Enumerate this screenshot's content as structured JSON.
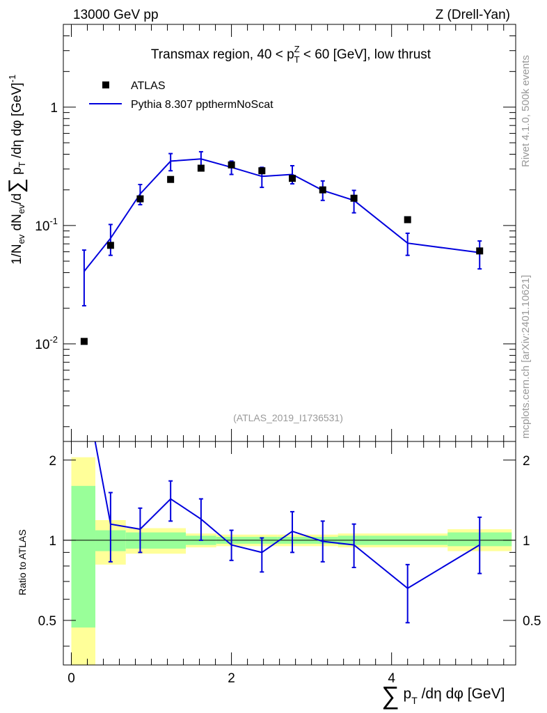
{
  "header": {
    "energy": "13000 GeV pp",
    "process": "Z (Drell-Yan)",
    "title": "Transmax region, 40 < p_T^Z < 60 [GeV], low thrust",
    "analysis": "(ATLAS_2019_I1736531)",
    "rivet": "Rivet 4.1.0,  500k events",
    "source": "mcplots.cern.ch [arXiv:2401.10621]"
  },
  "colors": {
    "mc": "#0000dd",
    "data": "#000000",
    "band_inner": "#99ff99",
    "band_outer": "#ffff99"
  },
  "chart_data": [
    {
      "type": "scatter",
      "title": "Transmax region, 40 < p_T^Z < 60 [GeV], low thrust",
      "xlabel": "Σ p_T /dη dφ [GeV]",
      "ylabel": "1/N_ev dN_ev/dΣ p_T /dη dφ [GeV]^-1",
      "yscale": "log",
      "xlim": [
        -0.1,
        5.55
      ],
      "ylim": [
        0.0015,
        5
      ],
      "ytick_labels": [
        "10^-2",
        "10^-1",
        "1"
      ],
      "legend": [
        "ATLAS",
        "Pythia 8.307 ppthermNoScat"
      ],
      "series": [
        {
          "name": "ATLAS",
          "x": [
            0.16,
            0.49,
            0.86,
            1.24,
            1.62,
            2.0,
            2.38,
            2.76,
            3.14,
            3.53,
            4.2,
            5.1
          ],
          "y": [
            0.0105,
            0.068,
            0.168,
            0.245,
            0.305,
            0.325,
            0.29,
            0.25,
            0.2,
            0.17,
            0.112,
            0.061
          ]
        },
        {
          "name": "Pythia 8.307 ppthermNoScat",
          "x": [
            0.16,
            0.49,
            0.86,
            1.24,
            1.62,
            2.0,
            2.38,
            2.76,
            3.14,
            3.53,
            4.2,
            5.1
          ],
          "y": [
            0.041,
            0.078,
            0.185,
            0.35,
            0.365,
            0.31,
            0.26,
            0.27,
            0.198,
            0.163,
            0.071,
            0.059
          ],
          "err_low": [
            0.02,
            0.022,
            0.035,
            0.06,
            0.05,
            0.04,
            0.05,
            0.045,
            0.035,
            0.035,
            0.015,
            0.016
          ],
          "err_high": [
            0.021,
            0.024,
            0.037,
            0.055,
            0.055,
            0.04,
            0.05,
            0.05,
            0.04,
            0.035,
            0.015,
            0.015
          ]
        }
      ]
    },
    {
      "type": "line",
      "ylabel": "Ratio to ATLAS",
      "xlim": [
        -0.1,
        5.55
      ],
      "ylim": [
        0.34,
        2.35
      ],
      "yscale": "log",
      "yticks": [
        0.5,
        1,
        2
      ],
      "ytick_labels": [
        "0.5",
        "1",
        "2"
      ],
      "xticks": [
        0,
        2,
        4
      ],
      "xtick_labels": [
        "0",
        "2",
        "4"
      ],
      "bands": [
        {
          "x": [
            0.0,
            0.3
          ],
          "inner": [
            0.47,
            1.6
          ],
          "outer": [
            0.34,
            2.05
          ]
        },
        {
          "x": [
            0.3,
            0.68
          ],
          "inner": [
            0.91,
            1.09
          ],
          "outer": [
            0.81,
            1.19
          ]
        },
        {
          "x": [
            0.68,
            1.43
          ],
          "inner": [
            0.93,
            1.07
          ],
          "outer": [
            0.89,
            1.11
          ]
        },
        {
          "x": [
            1.43,
            1.81
          ],
          "inner": [
            0.96,
            1.04
          ],
          "outer": [
            0.94,
            1.06
          ]
        },
        {
          "x": [
            1.81,
            2.57
          ],
          "inner": [
            0.97,
            1.03
          ],
          "outer": [
            0.95,
            1.05
          ]
        },
        {
          "x": [
            2.57,
            3.33
          ],
          "inner": [
            0.97,
            1.03
          ],
          "outer": [
            0.95,
            1.05
          ]
        },
        {
          "x": [
            3.33,
            3.72
          ],
          "inner": [
            0.96,
            1.04
          ],
          "outer": [
            0.94,
            1.06
          ]
        },
        {
          "x": [
            3.72,
            4.7
          ],
          "inner": [
            0.96,
            1.04
          ],
          "outer": [
            0.94,
            1.06
          ]
        },
        {
          "x": [
            4.7,
            5.5
          ],
          "inner": [
            0.95,
            1.07
          ],
          "outer": [
            0.91,
            1.1
          ]
        }
      ],
      "series": [
        {
          "name": "Pythia 8.307 ppthermNoScat",
          "x": [
            0.16,
            0.49,
            0.86,
            1.24,
            1.62,
            2.0,
            2.38,
            2.76,
            3.14,
            3.53,
            4.2,
            5.1
          ],
          "y": [
            3.9,
            1.15,
            1.1,
            1.43,
            1.2,
            0.96,
            0.9,
            1.08,
            0.99,
            0.96,
            0.66,
            0.96
          ],
          "err_low": [
            0,
            0.32,
            0.2,
            0.25,
            0.2,
            0.12,
            0.14,
            0.18,
            0.16,
            0.17,
            0.17,
            0.21
          ],
          "err_high": [
            0,
            0.36,
            0.22,
            0.24,
            0.23,
            0.13,
            0.12,
            0.2,
            0.19,
            0.19,
            0.15,
            0.26
          ]
        }
      ]
    }
  ]
}
